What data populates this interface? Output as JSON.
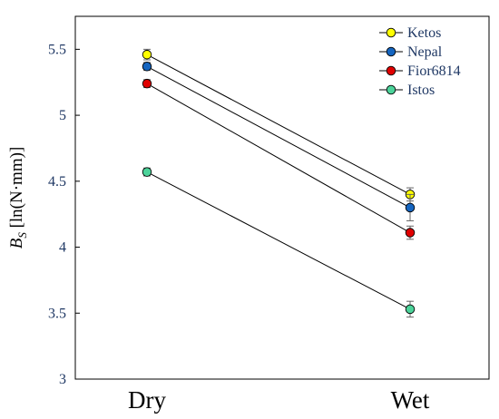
{
  "chart_data": {
    "type": "line",
    "categories": [
      "Dry",
      "Wet"
    ],
    "series": [
      {
        "name": "Ketos",
        "values": [
          5.46,
          4.4
        ],
        "errors": [
          0.04,
          0.05
        ],
        "color": "#ffff00"
      },
      {
        "name": "Nepal",
        "values": [
          5.37,
          4.3
        ],
        "errors": [
          0.03,
          0.1
        ],
        "color": "#1565c0"
      },
      {
        "name": "Fior6814",
        "values": [
          5.24,
          4.11
        ],
        "errors": [
          0.03,
          0.05
        ],
        "color": "#e00000"
      },
      {
        "name": "Istos",
        "values": [
          4.57,
          3.53
        ],
        "errors": [
          0.03,
          0.06
        ],
        "color": "#4cd39a"
      }
    ],
    "title": "",
    "xlabel": "",
    "ylabel": "B",
    "ylabel_subscript": "S",
    "ylabel_suffix": " [ln(N·mm)]",
    "ylim": [
      3,
      5.75
    ],
    "yticks": [
      "3",
      "3.5",
      "4",
      "4.5",
      "5",
      "5.5"
    ],
    "grid": false,
    "legend_position": "top-right"
  }
}
